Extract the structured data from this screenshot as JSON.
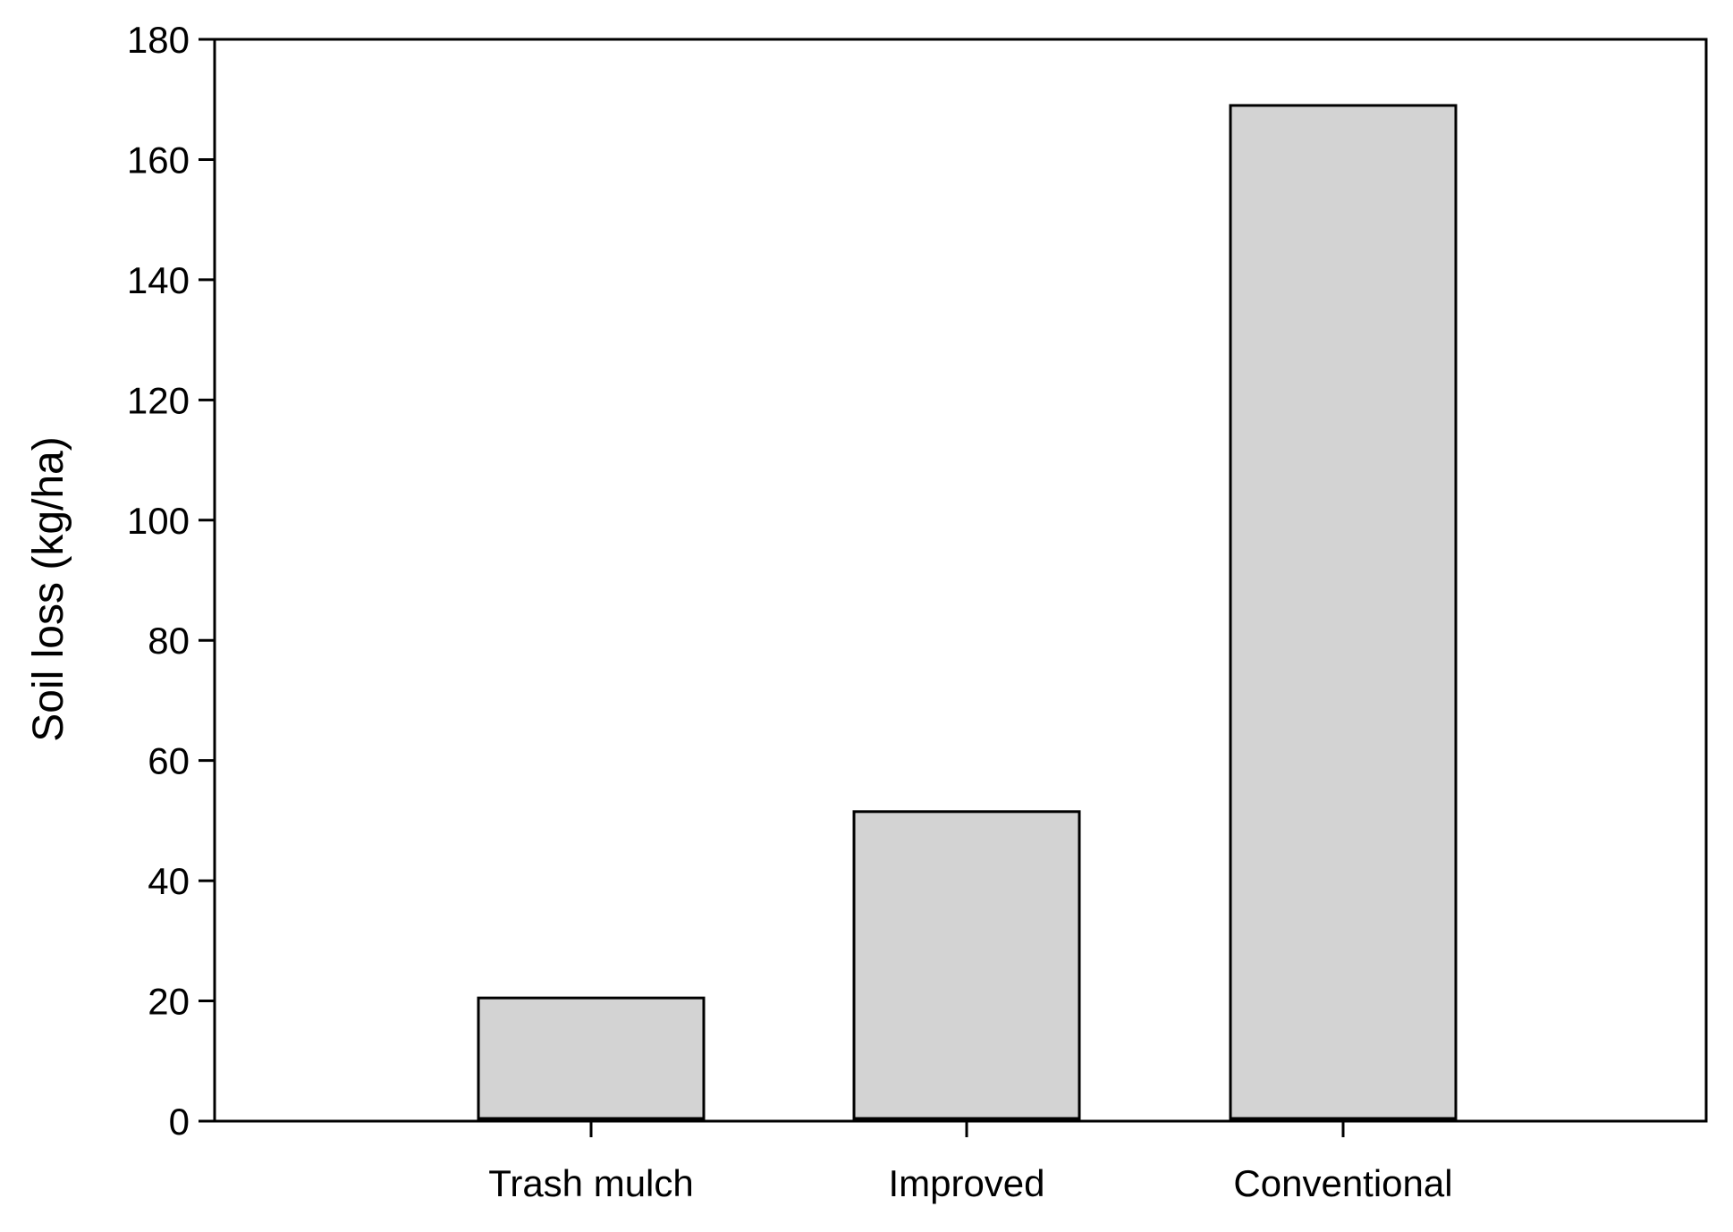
{
  "chart_data": {
    "type": "bar",
    "title": "",
    "xlabel": "",
    "ylabel": "Soil loss (kg/ha)",
    "categories": [
      "Trash mulch",
      "Improved",
      "Conventional"
    ],
    "values": [
      20.5,
      51.5,
      169
    ],
    "ylim": [
      0,
      180
    ],
    "yticks": [
      0,
      20,
      40,
      60,
      80,
      100,
      120,
      140,
      160,
      180
    ],
    "ytick_labels": [
      "0",
      "20",
      "40",
      "60",
      "80",
      "100",
      "120",
      "140",
      "160",
      "180"
    ],
    "grid": false,
    "legend": "none",
    "bar_color": "#d3d3d3",
    "edge_color": "#000000"
  }
}
